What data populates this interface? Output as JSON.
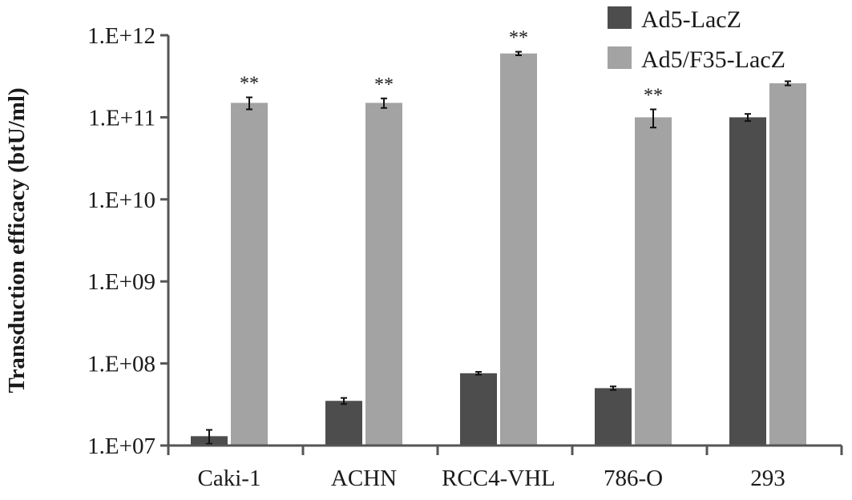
{
  "chart_data": {
    "type": "bar",
    "title": "",
    "xlabel": "",
    "ylabel": "Transduction efficacy (btU/ml)",
    "scale": "log10",
    "ylim": [
      10000000,
      1000000000000
    ],
    "yticks": [
      {
        "value": 10000000,
        "label": "1.E+07"
      },
      {
        "value": 100000000,
        "label": "1.E+08"
      },
      {
        "value": 1000000000,
        "label": "1.E+09"
      },
      {
        "value": 10000000000,
        "label": "1.E+10"
      },
      {
        "value": 100000000000,
        "label": "1.E+11"
      },
      {
        "value": 1000000000000,
        "label": "1.E+12"
      }
    ],
    "categories": [
      "Caki-1",
      "ACHN",
      "RCC4-VHL",
      "786-O",
      "293"
    ],
    "series": [
      {
        "name": "Ad5-LacZ",
        "color": "#4d4d4d",
        "values": [
          13000000,
          35000000,
          76000000,
          50000000,
          100000000000
        ],
        "errors": [
          2500000,
          3000000,
          3000000,
          2500000,
          10000000000
        ],
        "significance": [
          "",
          "",
          "",
          "",
          ""
        ]
      },
      {
        "name": "Ad5/F35-LacZ",
        "color": "#a3a3a3",
        "values": [
          150000000000,
          150000000000,
          600000000000,
          100000000000,
          260000000000
        ],
        "errors": [
          25000000000,
          20000000000,
          30000000000,
          25000000000,
          15000000000
        ],
        "significance": [
          "**",
          "**",
          "**",
          "**",
          ""
        ]
      }
    ],
    "legend_position": "top-right",
    "grid": false
  }
}
